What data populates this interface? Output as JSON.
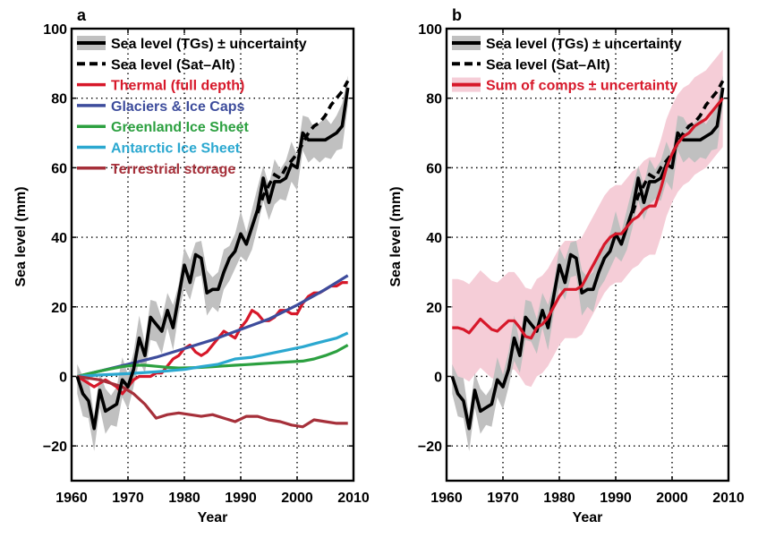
{
  "chart_data": [
    {
      "panel_label": "a",
      "type": "line",
      "xlabel": "Year",
      "ylabel": "Sea level (mm)",
      "xlim": [
        1960,
        2010
      ],
      "ylim": [
        -30,
        100
      ],
      "xticks": [
        "1960",
        "1970",
        "1980",
        "1990",
        "2000",
        "2010"
      ],
      "yticks": [
        "100",
        "80",
        "60",
        "40",
        "20",
        "0",
        "−20"
      ],
      "grid": true,
      "legend_position": "top-left",
      "legend": [
        {
          "label": "Sea level (TGs) ± uncertainty",
          "color": "#000000",
          "style": "solid-band",
          "band_color": "#c0c0c0"
        },
        {
          "label": "Sea level (Sat–Alt)",
          "color": "#000000",
          "style": "dashed"
        },
        {
          "label": "Thermal (full depth)",
          "color": "#d7182a",
          "style": "solid"
        },
        {
          "label": "Glaciers & Ice Caps",
          "color": "#3d4c9c",
          "style": "solid"
        },
        {
          "label": "Greenland Ice Sheet",
          "color": "#2ca040",
          "style": "solid"
        },
        {
          "label": "Antarctic Ice Sheet",
          "color": "#2ba8d0",
          "style": "solid"
        },
        {
          "label": "Terrestrial storage",
          "color": "#a6303a",
          "style": "solid"
        }
      ],
      "series": [
        {
          "name": "Sea level (TGs)",
          "color": "#000000",
          "x": [
            1961,
            1962,
            1963,
            1964,
            1965,
            1966,
            1967,
            1968,
            1969,
            1970,
            1971,
            1972,
            1973,
            1974,
            1975,
            1976,
            1977,
            1978,
            1979,
            1980,
            1981,
            1982,
            1983,
            1984,
            1985,
            1986,
            1987,
            1988,
            1989,
            1990,
            1991,
            1992,
            1993,
            1994,
            1995,
            1996,
            1997,
            1998,
            1999,
            2000,
            2001,
            2002,
            2003,
            2004,
            2005,
            2006,
            2007,
            2008,
            2009
          ],
          "y": [
            0,
            -5,
            -7,
            -15,
            -4,
            -10,
            -9,
            -8,
            -1,
            -3,
            2,
            11,
            6,
            17,
            15,
            13,
            19,
            14,
            23,
            32,
            27,
            35,
            34,
            24,
            25,
            25,
            30,
            34,
            36,
            41,
            38,
            43,
            48,
            57,
            50,
            56,
            56,
            57,
            61,
            60,
            70,
            68,
            68,
            68,
            68,
            69,
            70,
            72,
            83
          ],
          "band": 5
        },
        {
          "name": "Sea level (Sat–Alt)",
          "color": "#000000",
          "dashed": true,
          "x": [
            1993,
            1994,
            1995,
            1996,
            1997,
            1998,
            1999,
            2000,
            2001,
            2002,
            2003,
            2004,
            2005,
            2006,
            2007,
            2008,
            2009
          ],
          "y": [
            47,
            52,
            55,
            58,
            57,
            60,
            62,
            64,
            67,
            70,
            72,
            73,
            75,
            78,
            80,
            82,
            85
          ]
        },
        {
          "name": "Thermal (full depth)",
          "color": "#d7182a",
          "x": [
            1961,
            1962,
            1963,
            1964,
            1965,
            1966,
            1967,
            1968,
            1969,
            1970,
            1971,
            1972,
            1973,
            1974,
            1975,
            1976,
            1977,
            1978,
            1979,
            1980,
            1981,
            1982,
            1983,
            1984,
            1985,
            1986,
            1987,
            1988,
            1989,
            1990,
            1991,
            1992,
            1993,
            1994,
            1995,
            1996,
            1997,
            1998,
            1999,
            2000,
            2001,
            2002,
            2003,
            2004,
            2005,
            2006,
            2007,
            2008,
            2009
          ],
          "y": [
            0,
            -1,
            -2,
            -3,
            -2,
            -1,
            -2,
            -3,
            -5,
            -3,
            -1,
            0,
            0,
            0,
            1,
            1,
            3,
            5,
            6,
            8,
            9,
            7,
            6,
            7,
            9,
            11,
            13,
            12,
            11,
            14,
            16,
            19,
            18,
            16,
            16,
            17,
            19,
            19,
            18,
            18,
            21,
            23,
            24,
            24,
            25,
            26,
            26,
            27,
            27
          ]
        },
        {
          "name": "Glaciers & Ice Caps",
          "color": "#3d4c9c",
          "x": [
            1961,
            1965,
            1970,
            1975,
            1980,
            1985,
            1990,
            1995,
            2000,
            2005,
            2009
          ],
          "y": [
            0,
            1.5,
            3.5,
            5.5,
            8,
            10.5,
            13.5,
            16.5,
            20.5,
            25,
            29
          ]
        },
        {
          "name": "Greenland Ice Sheet",
          "color": "#2ca040",
          "x": [
            1961,
            1963,
            1965,
            1967,
            1969,
            1971,
            1973,
            1975,
            1977,
            1979,
            1981,
            1983,
            1985,
            1987,
            1989,
            1991,
            1993,
            1995,
            1997,
            1999,
            2001,
            2003,
            2005,
            2007,
            2009
          ],
          "y": [
            0,
            0.8,
            1.5,
            2.2,
            2.8,
            3.2,
            3.2,
            2.9,
            2.6,
            2.4,
            2.5,
            2.6,
            2.8,
            3,
            3.2,
            3.4,
            3.6,
            3.8,
            4,
            4.2,
            4.4,
            5,
            6,
            7.2,
            9
          ]
        },
        {
          "name": "Antarctic Ice Sheet",
          "color": "#2ba8d0",
          "x": [
            1961,
            1965,
            1970,
            1975,
            1980,
            1983,
            1986,
            1989,
            1992,
            1995,
            1998,
            2001,
            2004,
            2007,
            2009
          ],
          "y": [
            0,
            0.4,
            0.8,
            1.3,
            2,
            2.8,
            3.5,
            5,
            5.5,
            6.5,
            7.5,
            8.5,
            9.8,
            11,
            12.5
          ]
        },
        {
          "name": "Terrestrial storage",
          "color": "#a6303a",
          "x": [
            1961,
            1963,
            1965,
            1967,
            1969,
            1971,
            1973,
            1975,
            1977,
            1979,
            1981,
            1983,
            1985,
            1987,
            1989,
            1991,
            1993,
            1995,
            1997,
            1999,
            2001,
            2003,
            2005,
            2007,
            2009
          ],
          "y": [
            0,
            -0.5,
            -1,
            -2,
            -3,
            -5,
            -8,
            -12,
            -11,
            -10.5,
            -11,
            -11.5,
            -11,
            -12,
            -13,
            -11.5,
            -11.5,
            -12.5,
            -13,
            -14,
            -14.5,
            -12.5,
            -13,
            -13.5,
            -13.5
          ]
        }
      ]
    },
    {
      "panel_label": "b",
      "type": "line",
      "xlabel": "Year",
      "ylabel": "Sea level (mm)",
      "xlim": [
        1960,
        2010
      ],
      "ylim": [
        -30,
        100
      ],
      "xticks": [
        "1960",
        "1970",
        "1980",
        "1990",
        "2000",
        "2010"
      ],
      "yticks": [
        "100",
        "80",
        "60",
        "40",
        "20",
        "0",
        "−20"
      ],
      "grid": true,
      "legend_position": "top-left",
      "legend": [
        {
          "label": "Sea level (TGs) ± uncertainty",
          "color": "#000000",
          "style": "solid-band",
          "band_color": "#c0c0c0"
        },
        {
          "label": "Sea level (Sat–Alt)",
          "color": "#000000",
          "style": "dashed"
        },
        {
          "label": "Sum of comps ± uncertainty",
          "color": "#d7182a",
          "style": "solid-band",
          "band_color": "#f5cdd7"
        }
      ],
      "series": [
        {
          "name": "Sum of comps",
          "color": "#d7182a",
          "x": [
            1961,
            1962,
            1963,
            1964,
            1965,
            1966,
            1967,
            1968,
            1969,
            1970,
            1971,
            1972,
            1973,
            1974,
            1975,
            1976,
            1977,
            1978,
            1979,
            1980,
            1981,
            1982,
            1983,
            1984,
            1985,
            1986,
            1987,
            1988,
            1989,
            1990,
            1991,
            1992,
            1993,
            1994,
            1995,
            1996,
            1997,
            1998,
            1999,
            2000,
            2001,
            2002,
            2003,
            2004,
            2005,
            2006,
            2007,
            2008,
            2009
          ],
          "y": [
            14,
            14,
            13.5,
            12.5,
            14.5,
            16.5,
            15,
            13.5,
            13,
            14.5,
            16,
            16,
            14,
            11.5,
            11,
            14,
            15,
            17,
            20,
            23,
            25,
            25,
            25,
            26,
            29,
            32,
            35,
            38,
            40,
            41,
            41,
            43,
            45,
            46,
            48,
            49,
            49,
            54,
            60,
            64,
            67,
            69,
            70,
            72,
            73,
            74,
            76,
            78,
            80
          ],
          "band": 14
        },
        {
          "name": "Sea level (TGs)",
          "color": "#000000",
          "ref": "same as panel a",
          "band": 5
        },
        {
          "name": "Sea level (Sat–Alt)",
          "color": "#000000",
          "dashed": true,
          "ref": "same as panel a"
        }
      ]
    }
  ]
}
